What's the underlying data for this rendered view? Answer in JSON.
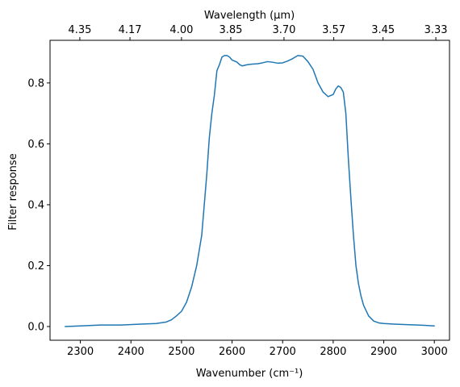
{
  "chart_data": {
    "type": "line",
    "xlabel": "Wavenumber (cm⁻¹)",
    "ylabel": "Filter response",
    "top_xlabel": "Wavelength (μm)",
    "xlim": [
      2240,
      3030
    ],
    "ylim": [
      -0.045,
      0.94
    ],
    "x_ticks": [
      2300,
      2400,
      2500,
      2600,
      2700,
      2800,
      2900,
      3000
    ],
    "x_tick_labels": [
      "2300",
      "2400",
      "2500",
      "2600",
      "2700",
      "2800",
      "2900",
      "3000"
    ],
    "y_ticks": [
      0.0,
      0.2,
      0.4,
      0.6,
      0.8
    ],
    "y_tick_labels": [
      "0.0",
      "0.2",
      "0.4",
      "0.6",
      "0.8"
    ],
    "top_ticks": [
      {
        "label": "4.35",
        "wavenumber": 2298.9
      },
      {
        "label": "4.17",
        "wavenumber": 2398.1
      },
      {
        "label": "4.00",
        "wavenumber": 2500.0
      },
      {
        "label": "3.85",
        "wavenumber": 2597.4
      },
      {
        "label": "3.70",
        "wavenumber": 2702.7
      },
      {
        "label": "3.57",
        "wavenumber": 2801.1
      },
      {
        "label": "3.45",
        "wavenumber": 2898.6
      },
      {
        "label": "3.33",
        "wavenumber": 3003.0
      }
    ],
    "grid": false,
    "colors": {
      "line": "#1f77b4",
      "axes": "#000000",
      "background": "#ffffff"
    },
    "series": [
      {
        "x": [
          2270,
          2300,
          2340,
          2380,
          2420,
          2450,
          2470,
          2480,
          2490,
          2500,
          2510,
          2520,
          2530,
          2540,
          2545,
          2550,
          2555,
          2560,
          2565,
          2570,
          2575,
          2580,
          2585,
          2590,
          2595,
          2600,
          2605,
          2610,
          2615,
          2620,
          2625,
          2630,
          2640,
          2650,
          2660,
          2670,
          2680,
          2690,
          2700,
          2710,
          2720,
          2730,
          2740,
          2750,
          2760,
          2770,
          2780,
          2790,
          2800,
          2805,
          2810,
          2815,
          2820,
          2825,
          2830,
          2835,
          2840,
          2845,
          2850,
          2855,
          2860,
          2870,
          2880,
          2890,
          2900,
          2920,
          2950,
          2980,
          3000
        ],
        "y": [
          0.0,
          0.002,
          0.005,
          0.005,
          0.008,
          0.01,
          0.015,
          0.022,
          0.035,
          0.05,
          0.08,
          0.13,
          0.2,
          0.3,
          0.4,
          0.5,
          0.62,
          0.7,
          0.76,
          0.84,
          0.86,
          0.885,
          0.89,
          0.89,
          0.885,
          0.875,
          0.872,
          0.868,
          0.86,
          0.856,
          0.858,
          0.86,
          0.862,
          0.863,
          0.866,
          0.87,
          0.868,
          0.865,
          0.866,
          0.872,
          0.88,
          0.89,
          0.888,
          0.87,
          0.845,
          0.8,
          0.77,
          0.755,
          0.762,
          0.78,
          0.79,
          0.785,
          0.77,
          0.7,
          0.55,
          0.42,
          0.3,
          0.2,
          0.14,
          0.1,
          0.07,
          0.035,
          0.018,
          0.012,
          0.01,
          0.008,
          0.006,
          0.004,
          0.002
        ]
      }
    ]
  }
}
